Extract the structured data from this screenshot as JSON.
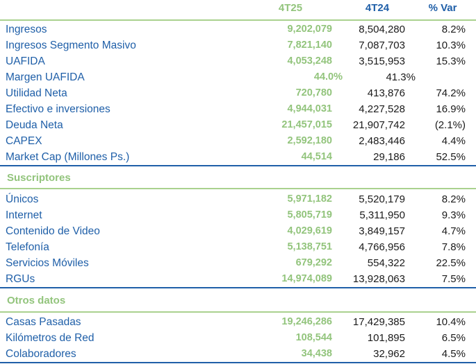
{
  "header": {
    "col_4t25": "4T25",
    "col_4t24": "4T24",
    "col_var": "% Var"
  },
  "main_rows": [
    {
      "label": "Ingresos",
      "v4t25": "9,202,079",
      "v4t24": "8,504,280",
      "var": "8.2%"
    },
    {
      "label": "Ingresos Segmento Masivo",
      "v4t25": "7,821,140",
      "v4t24": "7,087,703",
      "var": "10.3%"
    },
    {
      "label": "UAFIDA",
      "v4t25": "4,053,248",
      "v4t24": "3,515,953",
      "var": "15.3%"
    },
    {
      "label": "Margen UAFIDA",
      "v4t25": "44.0%",
      "v4t24": "41.3%",
      "var": ""
    },
    {
      "label": "Utilidad Neta",
      "v4t25": "720,780",
      "v4t24": "413,876",
      "var": "74.2%"
    },
    {
      "label": "Efectivo e inversiones",
      "v4t25": "4,944,031",
      "v4t24": "4,227,528",
      "var": "16.9%"
    },
    {
      "label": "Deuda Neta",
      "v4t25": "21,457,015",
      "v4t24": "21,907,742",
      "var": "(2.1%)"
    },
    {
      "label": "CAPEX",
      "v4t25": "2,592,180",
      "v4t24": "2,483,446",
      "var": "4.4%"
    },
    {
      "label": "Market Cap (Millones Ps.)",
      "v4t25": "44,514",
      "v4t24": "29,186",
      "var": "52.5%"
    }
  ],
  "suscriptores": {
    "title": "Suscriptores",
    "rows": [
      {
        "label": "Únicos",
        "v4t25": "5,971,182",
        "v4t24": "5,520,179",
        "var": "8.2%"
      },
      {
        "label": "Internet",
        "v4t25": "5,805,719",
        "v4t24": "5,311,950",
        "var": "9.3%"
      },
      {
        "label": "Contenido de Video",
        "v4t25": "4,029,619",
        "v4t24": "3,849,157",
        "var": "4.7%"
      },
      {
        "label": "Telefonía",
        "v4t25": "5,138,751",
        "v4t24": "4,766,956",
        "var": "7.8%"
      },
      {
        "label": "Servicios Móviles",
        "v4t25": "679,292",
        "v4t24": "554,322",
        "var": "22.5%"
      },
      {
        "label": "RGUs",
        "v4t25": "14,974,089",
        "v4t24": "13,928,063",
        "var": "7.5%"
      }
    ]
  },
  "otros": {
    "title": "Otros datos",
    "rows": [
      {
        "label": "Casas Pasadas",
        "v4t25": "19,246,286",
        "v4t24": "17,429,385",
        "var": "10.4%"
      },
      {
        "label": "Kilómetros de Red",
        "v4t25": "108,544",
        "v4t24": "101,895",
        "var": "6.5%"
      },
      {
        "label": "Colaboradores",
        "v4t25": "34,438",
        "v4t24": "32,962",
        "var": "4.5%"
      }
    ]
  }
}
